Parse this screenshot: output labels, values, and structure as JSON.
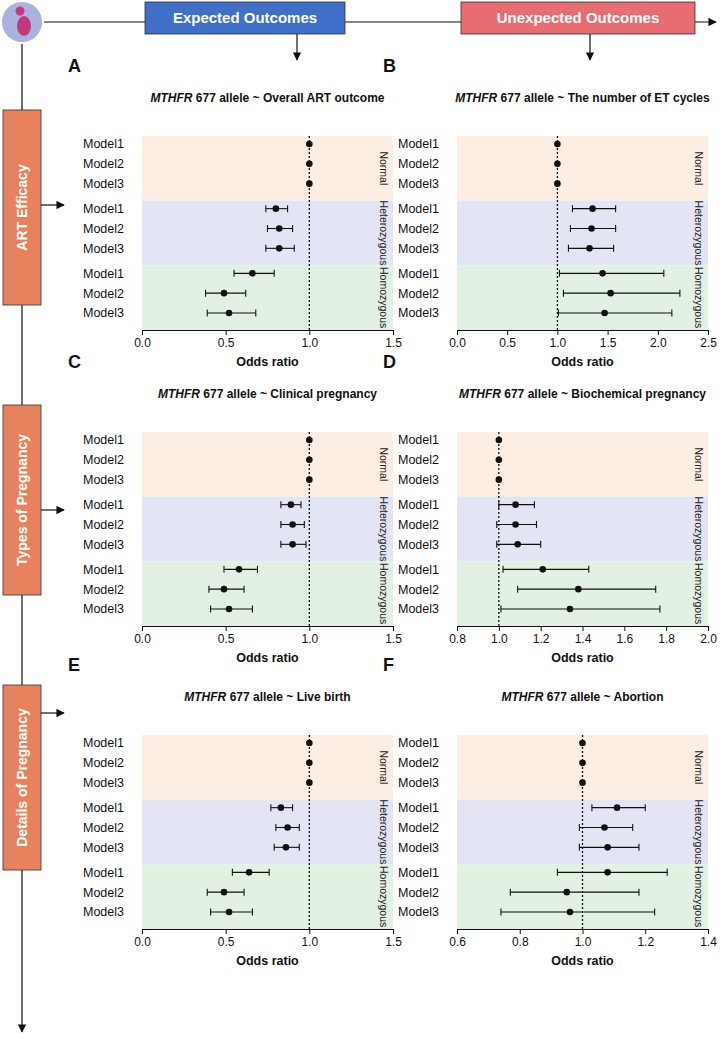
{
  "header": {
    "columns": [
      "Expected Outcomes",
      "Unexpected Outcomes"
    ],
    "rows": [
      "ART Efficacy",
      "Types of Pregnancy",
      "Details of Pregnancy"
    ]
  },
  "chart_data": [
    {
      "type": "forest",
      "panel_label": "A",
      "title": "MTHFR 677 allele ~ Overall ART outcome",
      "xlabel": "Odds ratio",
      "categories": [
        "Model1",
        "Model2",
        "Model3"
      ],
      "xlim": [
        0,
        1.5
      ],
      "xticks": [
        {
          "value": 0,
          "label": "0.0"
        },
        {
          "value": 0.5,
          "label": "0.5"
        },
        {
          "value": 1,
          "label": "1.0"
        },
        {
          "value": 1.5,
          "label": "1.5"
        }
      ],
      "reference_line": 1,
      "series": [
        {
          "name": "Normal",
          "color": "#fdeee4",
          "values": [
            1,
            1,
            1
          ]
        },
        {
          "name": "Heterozygous",
          "color": "#e4e5f4",
          "values": [
            0.8,
            0.82,
            0.82
          ],
          "lower": [
            0.74,
            0.75,
            0.74
          ],
          "upper": [
            0.87,
            0.9,
            0.91
          ]
        },
        {
          "name": "Homozygous",
          "color": "#e3f1e5",
          "values": [
            0.66,
            0.49,
            0.52
          ],
          "lower": [
            0.55,
            0.38,
            0.39
          ],
          "upper": [
            0.79,
            0.62,
            0.68
          ]
        }
      ]
    },
    {
      "type": "forest",
      "panel_label": "B",
      "title": "MTHFR 677 allele ~ The number of ET cycles",
      "xlabel": "Odds ratio",
      "categories": [
        "Model1",
        "Model2",
        "Model3"
      ],
      "xlim": [
        0,
        2.5
      ],
      "xticks": [
        {
          "value": 0,
          "label": "0.0"
        },
        {
          "value": 0.5,
          "label": "0.5"
        },
        {
          "value": 1,
          "label": "1.0"
        },
        {
          "value": 1.5,
          "label": "1.5"
        },
        {
          "value": 2,
          "label": "2.0"
        },
        {
          "value": 2.5,
          "label": "2.5"
        }
      ],
      "reference_line": 1,
      "series": [
        {
          "name": "Normal",
          "color": "#fdeee4",
          "values": [
            1,
            1,
            1
          ]
        },
        {
          "name": "Heterozygous",
          "color": "#e4e5f4",
          "values": [
            1.35,
            1.34,
            1.32
          ],
          "lower": [
            1.15,
            1.13,
            1.11
          ],
          "upper": [
            1.58,
            1.58,
            1.56
          ]
        },
        {
          "name": "Homozygous",
          "color": "#e3f1e5",
          "values": [
            1.45,
            1.53,
            1.47
          ],
          "lower": [
            1.02,
            1.06,
            1.01
          ],
          "upper": [
            2.06,
            2.22,
            2.14
          ]
        }
      ]
    },
    {
      "type": "forest",
      "panel_label": "C",
      "title": "MTHFR 677 allele ~ Clinical pregnancy",
      "xlabel": "Odds ratio",
      "categories": [
        "Model1",
        "Model2",
        "Model3"
      ],
      "xlim": [
        0,
        1.5
      ],
      "xticks": [
        {
          "value": 0,
          "label": "0.0"
        },
        {
          "value": 0.5,
          "label": "0.5"
        },
        {
          "value": 1,
          "label": "1.0"
        },
        {
          "value": 1.5,
          "label": "1.5"
        }
      ],
      "reference_line": 1,
      "series": [
        {
          "name": "Normal",
          "color": "#fdeee4",
          "values": [
            1,
            1,
            1
          ]
        },
        {
          "name": "Heterozygous",
          "color": "#e4e5f4",
          "values": [
            0.89,
            0.9,
            0.9
          ],
          "lower": [
            0.83,
            0.83,
            0.83
          ],
          "upper": [
            0.95,
            0.97,
            0.98
          ]
        },
        {
          "name": "Homozygous",
          "color": "#e3f1e5",
          "values": [
            0.58,
            0.49,
            0.52
          ],
          "lower": [
            0.49,
            0.4,
            0.41
          ],
          "upper": [
            0.69,
            0.61,
            0.66
          ]
        }
      ]
    },
    {
      "type": "forest",
      "panel_label": "D",
      "title": "MTHFR 677 allele ~ Biochemical pregnancy",
      "xlabel": "Odds ratio",
      "categories": [
        "Model1",
        "Model2",
        "Model3"
      ],
      "xlim": [
        0.8,
        2.0
      ],
      "xticks": [
        {
          "value": 0.8,
          "label": "0.8"
        },
        {
          "value": 1,
          "label": "1.0"
        },
        {
          "value": 1.2,
          "label": "1.2"
        },
        {
          "value": 1.4,
          "label": "1.4"
        },
        {
          "value": 1.6,
          "label": "1.6"
        },
        {
          "value": 1.8,
          "label": "1.8"
        },
        {
          "value": 2,
          "label": "2.0"
        }
      ],
      "reference_line": 1,
      "series": [
        {
          "name": "Normal",
          "color": "#fdeee4",
          "values": [
            1,
            1,
            1
          ]
        },
        {
          "name": "Heterozygous",
          "color": "#e4e5f4",
          "values": [
            1.08,
            1.08,
            1.09
          ],
          "lower": [
            1.0,
            0.99,
            0.99
          ],
          "upper": [
            1.17,
            1.18,
            1.2
          ]
        },
        {
          "name": "Homozygous",
          "color": "#e3f1e5",
          "values": [
            1.21,
            1.38,
            1.34
          ],
          "lower": [
            1.02,
            1.09,
            1.01
          ],
          "upper": [
            1.43,
            1.75,
            1.77
          ]
        }
      ]
    },
    {
      "type": "forest",
      "panel_label": "E",
      "title": "MTHFR 677 allele ~ Live birth",
      "xlabel": "Odds ratio",
      "categories": [
        "Model1",
        "Model2",
        "Model3"
      ],
      "xlim": [
        0,
        1.5
      ],
      "xticks": [
        {
          "value": 0,
          "label": "0.0"
        },
        {
          "value": 0.5,
          "label": "0.5"
        },
        {
          "value": 1,
          "label": "1.0"
        },
        {
          "value": 1.5,
          "label": "1.5"
        }
      ],
      "reference_line": 1,
      "series": [
        {
          "name": "Normal",
          "color": "#fdeee4",
          "values": [
            1,
            1,
            1
          ]
        },
        {
          "name": "Heterozygous",
          "color": "#e4e5f4",
          "values": [
            0.83,
            0.87,
            0.86
          ],
          "lower": [
            0.77,
            0.8,
            0.79
          ],
          "upper": [
            0.9,
            0.94,
            0.94
          ]
        },
        {
          "name": "Homozygous",
          "color": "#e3f1e5",
          "values": [
            0.64,
            0.49,
            0.52
          ],
          "lower": [
            0.54,
            0.39,
            0.41
          ],
          "upper": [
            0.76,
            0.61,
            0.66
          ]
        }
      ]
    },
    {
      "type": "forest",
      "panel_label": "F",
      "title": "MTHFR 677 allele ~ Abortion",
      "xlabel": "Odds ratio",
      "categories": [
        "Model1",
        "Model2",
        "Model3"
      ],
      "xlim": [
        0.6,
        1.4
      ],
      "xticks": [
        {
          "value": 0.6,
          "label": "0.6"
        },
        {
          "value": 0.8,
          "label": "0.8"
        },
        {
          "value": 1,
          "label": "1.0"
        },
        {
          "value": 1.2,
          "label": "1.2"
        },
        {
          "value": 1.4,
          "label": "1.4"
        }
      ],
      "reference_line": 1,
      "series": [
        {
          "name": "Normal",
          "color": "#fdeee4",
          "values": [
            1,
            1,
            1
          ]
        },
        {
          "name": "Heterozygous",
          "color": "#e4e5f4",
          "values": [
            1.11,
            1.07,
            1.08
          ],
          "lower": [
            1.03,
            0.99,
            0.99
          ],
          "upper": [
            1.2,
            1.16,
            1.18
          ]
        },
        {
          "name": "Homozygous",
          "color": "#e3f1e5",
          "values": [
            1.08,
            0.95,
            0.96
          ],
          "lower": [
            0.92,
            0.77,
            0.74
          ],
          "upper": [
            1.27,
            1.18,
            1.23
          ]
        }
      ]
    }
  ]
}
